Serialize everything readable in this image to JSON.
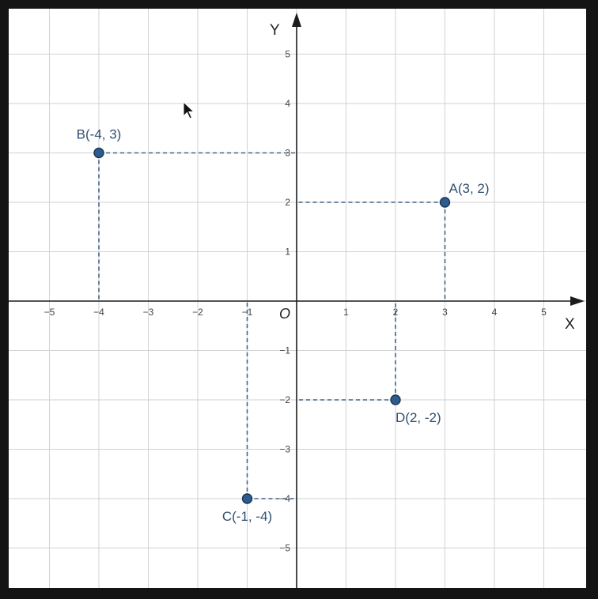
{
  "chart_data": {
    "type": "scatter",
    "title": "",
    "xlabel": "X",
    "ylabel": "Y",
    "origin_label": "O",
    "xlim": [
      -5,
      5
    ],
    "ylim": [
      -5,
      5
    ],
    "grid": true,
    "x_ticks": [
      "−5",
      "−4",
      "−3",
      "−2",
      "−1",
      "1",
      "2",
      "3",
      "4",
      "5"
    ],
    "x_tick_values": [
      -5,
      -4,
      -3,
      -2,
      -1,
      1,
      2,
      3,
      4,
      5
    ],
    "y_ticks": [
      "5",
      "4",
      "3",
      "2",
      "1",
      "−1",
      "−2",
      "−3",
      "−4",
      "−5"
    ],
    "y_tick_values": [
      5,
      4,
      3,
      2,
      1,
      -1,
      -2,
      -3,
      -4,
      -5
    ],
    "points": [
      {
        "label": "A(3, 2)",
        "x": 3,
        "y": 2
      },
      {
        "label": "B(-4, 3)",
        "x": -4,
        "y": 3
      },
      {
        "label": "C(-1, -4)",
        "x": -1,
        "y": -4
      },
      {
        "label": "D(2, -2)",
        "x": 2,
        "y": -2
      }
    ],
    "colors": {
      "point": "#2d5b8e",
      "guide": "#3e6286",
      "label": "#2f4f6f"
    }
  }
}
